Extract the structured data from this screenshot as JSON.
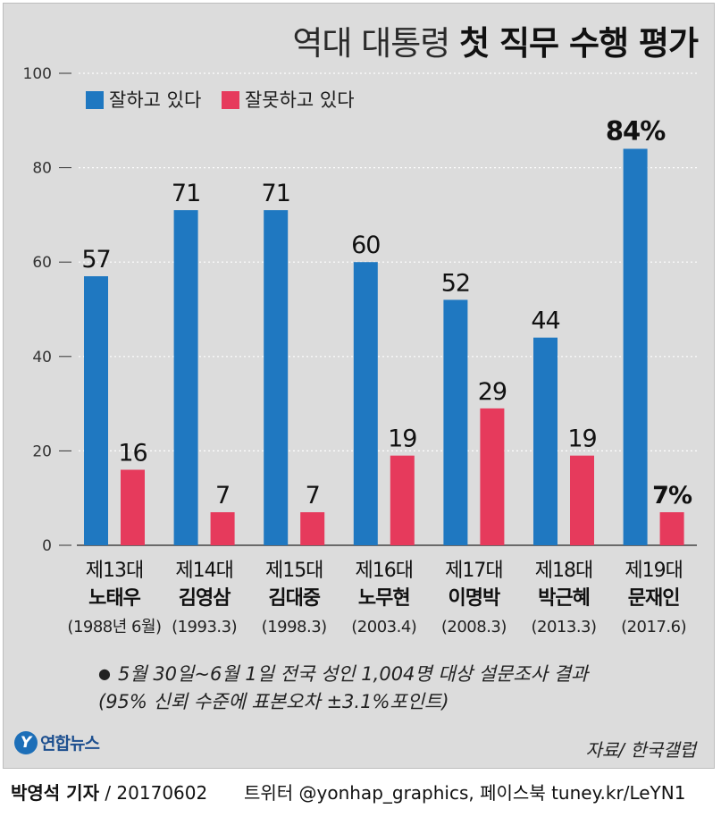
{
  "title": {
    "light": "역대 대통령",
    "bold": "첫 직무 수행 평가"
  },
  "colors": {
    "approve": "#1f78c1",
    "disapprove": "#e63a5c",
    "panel_bg": "#dcdcdc"
  },
  "legend": {
    "approve": "잘하고 있다",
    "disapprove": "잘못하고 있다"
  },
  "chart_data": {
    "type": "bar",
    "title": "역대 대통령 첫 직무 수행 평가",
    "ylim": [
      0,
      100
    ],
    "yticks": [
      0,
      20,
      40,
      60,
      80,
      100
    ],
    "grid": true,
    "legend_position": "top-left",
    "categories": [
      {
        "order": "제13대",
        "name": "노태우",
        "date": "(1988년 6월)"
      },
      {
        "order": "제14대",
        "name": "김영삼",
        "date": "(1993.3)"
      },
      {
        "order": "제15대",
        "name": "김대중",
        "date": "(1998.3)"
      },
      {
        "order": "제16대",
        "name": "노무현",
        "date": "(2003.4)"
      },
      {
        "order": "제17대",
        "name": "이명박",
        "date": "(2008.3)"
      },
      {
        "order": "제18대",
        "name": "박근혜",
        "date": "(2013.3)"
      },
      {
        "order": "제19대",
        "name": "문재인",
        "date": "(2017.6)"
      }
    ],
    "series": [
      {
        "name": "잘하고 있다",
        "values": [
          57,
          71,
          71,
          60,
          52,
          44,
          84
        ],
        "labels": [
          "57",
          "71",
          "71",
          "60",
          "52",
          "44",
          "84%"
        ]
      },
      {
        "name": "잘못하고 있다",
        "values": [
          16,
          7,
          7,
          19,
          29,
          19,
          7
        ],
        "labels": [
          "16",
          "7",
          "7",
          "19",
          "29",
          "19",
          "7%"
        ]
      }
    ]
  },
  "note": {
    "line1": "5월 30일~6월 1일 전국 성인 1,004명 대상 설문조사 결과",
    "line2": "(95% 신뢰 수준에 표본오차 ±3.1%포인트)"
  },
  "source": "자료/ 한국갤럽",
  "logo": {
    "mark": "Y",
    "name": "연합뉴스"
  },
  "footer": {
    "reporter": "박영석 기자",
    "date": "/ 20170602",
    "social": "트위터 @yonhap_graphics, 페이스북 tuney.kr/LeYN1"
  }
}
